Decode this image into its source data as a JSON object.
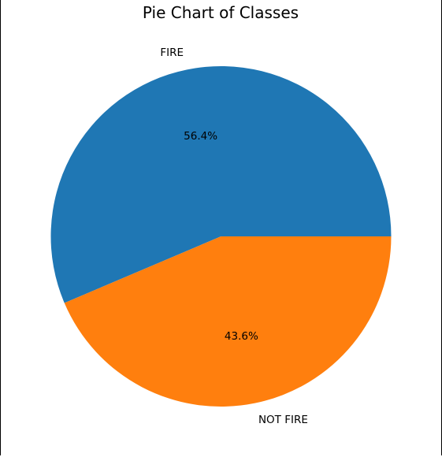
{
  "chart_data": {
    "type": "pie",
    "title": "Pie Chart of Classes",
    "categories": [
      "FIRE",
      "NOT FIRE"
    ],
    "values": [
      56.4,
      43.6
    ],
    "value_labels": [
      "56.4%",
      "43.6%"
    ],
    "colors": [
      "#1f77b4",
      "#ff7f0e"
    ],
    "start_angle_deg": 0,
    "direction": "counterclockwise",
    "legend": "none"
  }
}
